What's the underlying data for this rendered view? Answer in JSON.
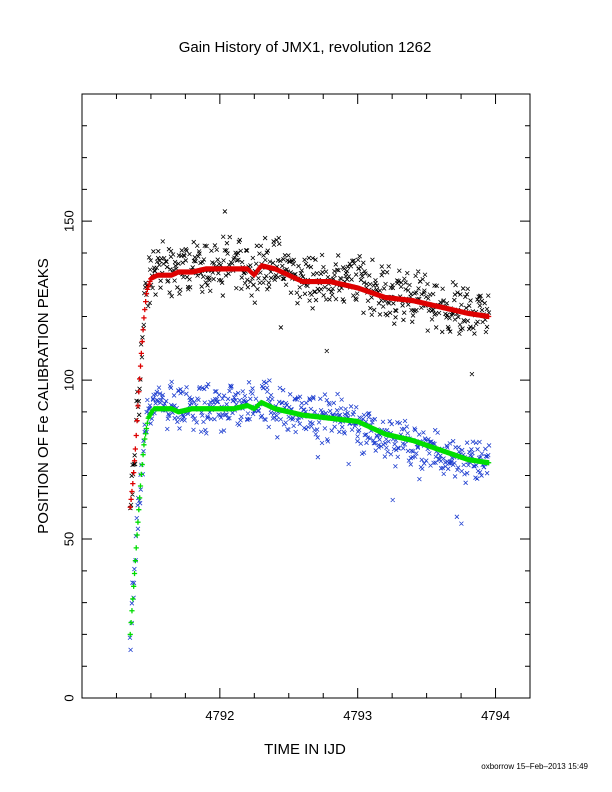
{
  "chart_data": {
    "type": "scatter",
    "title": "Gain History of JMX1, revolution 1262",
    "xlabel": "TIME IN IJD",
    "ylabel": "POSITION OF Fe CALIBRATION PEAKS",
    "xlim": [
      4791.0,
      4794.25
    ],
    "ylim": [
      0,
      190
    ],
    "xticks": [
      4792,
      4793,
      4794
    ],
    "xtick_labels": [
      "4792",
      "4793",
      "4794"
    ],
    "yticks": [
      0,
      50,
      100,
      150
    ],
    "ytick_labels": [
      "0",
      "50",
      "100",
      "150"
    ],
    "grid": false,
    "legend": "none",
    "series": [
      {
        "marker": "x",
        "color": "#000000",
        "scatter": 10,
        "x": [
          4791.35,
          4791.38,
          4791.4,
          4791.43,
          4791.45,
          4791.48,
          4791.52,
          4791.55,
          4791.6,
          4791.65,
          4791.7,
          4791.8,
          4791.9,
          4792.0,
          4792.1,
          4792.2,
          4792.25,
          4792.3,
          4792.4,
          4792.5,
          4792.6,
          4792.8,
          4793.0,
          4793.2,
          4793.4,
          4793.6,
          4793.8,
          4793.95
        ],
        "y": [
          60,
          72,
          90,
          108,
          122,
          130,
          134,
          135,
          135,
          134,
          135,
          136,
          136,
          136,
          137,
          136,
          134,
          137,
          136,
          134,
          131,
          132,
          132,
          127,
          126,
          124,
          121,
          121
        ]
      },
      {
        "marker": "+",
        "color": "#dd0000",
        "x": [
          4791.35,
          4791.37,
          4791.39,
          4791.41,
          4791.43,
          4791.45,
          4791.47,
          4791.5,
          4791.55,
          4791.6,
          4791.65,
          4791.7,
          4791.8,
          4791.9,
          4792.0,
          4792.1,
          4792.2,
          4792.25,
          4792.3,
          4792.4,
          4792.5,
          4792.6,
          4792.8,
          4793.0,
          4793.2,
          4793.4,
          4793.6,
          4793.8,
          4793.95
        ],
        "y": [
          60,
          68,
          80,
          95,
          108,
          120,
          128,
          132,
          133,
          133,
          133,
          134,
          134,
          135,
          135,
          135,
          135,
          133,
          136,
          135,
          133,
          131,
          131,
          129,
          126,
          125,
          123,
          121,
          120
        ]
      },
      {
        "marker": "x",
        "color": "#1f3fd0",
        "scatter": 9,
        "x": [
          4791.35,
          4791.37,
          4791.39,
          4791.41,
          4791.43,
          4791.45,
          4791.48,
          4791.52,
          4791.55,
          4791.6,
          4791.65,
          4791.7,
          4791.8,
          4791.9,
          4792.0,
          4792.1,
          4792.2,
          4792.25,
          4792.3,
          4792.4,
          4792.5,
          4792.6,
          4792.8,
          4793.0,
          4793.2,
          4793.4,
          4793.6,
          4793.8,
          4793.95
        ],
        "y": [
          20,
          30,
          45,
          60,
          72,
          82,
          90,
          92,
          92,
          92,
          91,
          90,
          90,
          91,
          92,
          92,
          92,
          91,
          93,
          92,
          91,
          89,
          88,
          86,
          82,
          80,
          77,
          75,
          74
        ]
      },
      {
        "marker": "+",
        "color": "#00dd00",
        "x": [
          4791.35,
          4791.37,
          4791.39,
          4791.41,
          4791.43,
          4791.45,
          4791.48,
          4791.52,
          4791.55,
          4791.6,
          4791.65,
          4791.7,
          4791.8,
          4791.9,
          4792.0,
          4792.1,
          4792.2,
          4792.25,
          4792.3,
          4792.4,
          4792.5,
          4792.6,
          4792.8,
          4793.0,
          4793.2,
          4793.4,
          4793.6,
          4793.8,
          4793.95
        ],
        "y": [
          20,
          32,
          45,
          58,
          70,
          80,
          88,
          91,
          91,
          91,
          91,
          90,
          91,
          91,
          91,
          91,
          92,
          91,
          93,
          91,
          90,
          89,
          88,
          87,
          83,
          81,
          78,
          75,
          74
        ]
      }
    ]
  },
  "footer": {
    "credit": "oxborrow 15–Feb–2013 15:49"
  }
}
